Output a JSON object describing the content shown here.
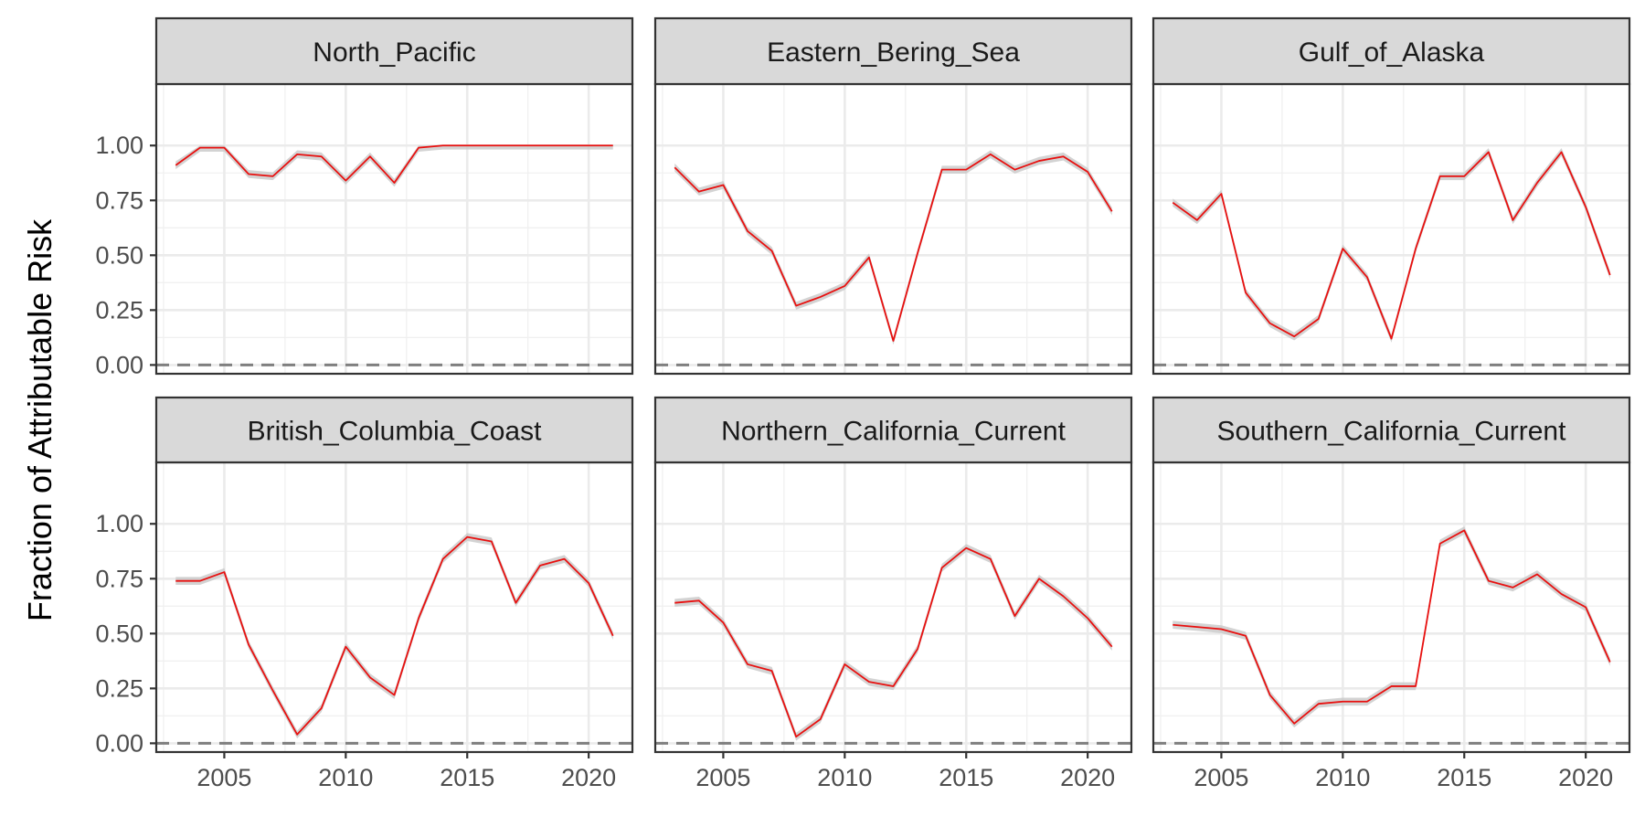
{
  "chart_data": {
    "type": "line",
    "ylabel": "Fraction of Attributable Risk",
    "xlabel": "",
    "xlim": [
      2002.2,
      2021.8
    ],
    "ylim": [
      -0.04,
      1.28
    ],
    "x_ticks": [
      2005,
      2010,
      2015,
      2020
    ],
    "x_tick_labels": [
      "2005",
      "2010",
      "2015",
      "2020"
    ],
    "y_ticks": [
      0,
      0.25,
      0.5,
      0.75,
      1.0
    ],
    "y_tick_labels": [
      "0.00",
      "0.25",
      "0.50",
      "0.75",
      "1.00"
    ],
    "reference_line": {
      "y": 0,
      "style": "dashed",
      "color": "#7f7f7f"
    },
    "grid": true,
    "line_color": "#e8100f",
    "ribbon_color": "#c8c8c8",
    "strip_color": "#d9d9d9",
    "x": [
      2003,
      2004,
      2005,
      2006,
      2007,
      2008,
      2009,
      2010,
      2011,
      2012,
      2013,
      2014,
      2015,
      2016,
      2017,
      2018,
      2019,
      2020,
      2021
    ],
    "panels": [
      {
        "name": "North_Pacific",
        "values": [
          0.91,
          0.99,
          0.99,
          0.87,
          0.86,
          0.96,
          0.95,
          0.84,
          0.95,
          0.83,
          0.99,
          1.0,
          1.0,
          1.0,
          1.0,
          1.0,
          1.0,
          1.0,
          1.0
        ]
      },
      {
        "name": "Eastern_Bering_Sea",
        "values": [
          0.9,
          0.79,
          0.82,
          0.61,
          0.52,
          0.27,
          0.31,
          0.36,
          0.49,
          0.11,
          0.51,
          0.89,
          0.89,
          0.96,
          0.89,
          0.93,
          0.95,
          0.88,
          0.7
        ]
      },
      {
        "name": "Gulf_of_Alaska",
        "values": [
          0.74,
          0.66,
          0.78,
          0.33,
          0.19,
          0.13,
          0.21,
          0.53,
          0.4,
          0.12,
          0.53,
          0.86,
          0.86,
          0.97,
          0.66,
          0.83,
          0.97,
          0.72,
          0.41
        ]
      },
      {
        "name": "British_Columbia_Coast",
        "values": [
          0.74,
          0.74,
          0.78,
          0.45,
          0.24,
          0.04,
          0.16,
          0.44,
          0.3,
          0.22,
          0.57,
          0.84,
          0.94,
          0.92,
          0.64,
          0.81,
          0.84,
          0.73,
          0.49
        ]
      },
      {
        "name": "Northern_California_Current",
        "values": [
          0.64,
          0.65,
          0.55,
          0.36,
          0.33,
          0.03,
          0.11,
          0.36,
          0.28,
          0.26,
          0.43,
          0.8,
          0.89,
          0.84,
          0.58,
          0.75,
          0.67,
          0.57,
          0.44
        ]
      },
      {
        "name": "Southern_California_Current",
        "values": [
          0.54,
          0.53,
          0.52,
          0.49,
          0.22,
          0.09,
          0.18,
          0.19,
          0.19,
          0.26,
          0.26,
          0.91,
          0.97,
          0.74,
          0.71,
          0.77,
          0.68,
          0.62,
          0.37
        ]
      }
    ]
  }
}
